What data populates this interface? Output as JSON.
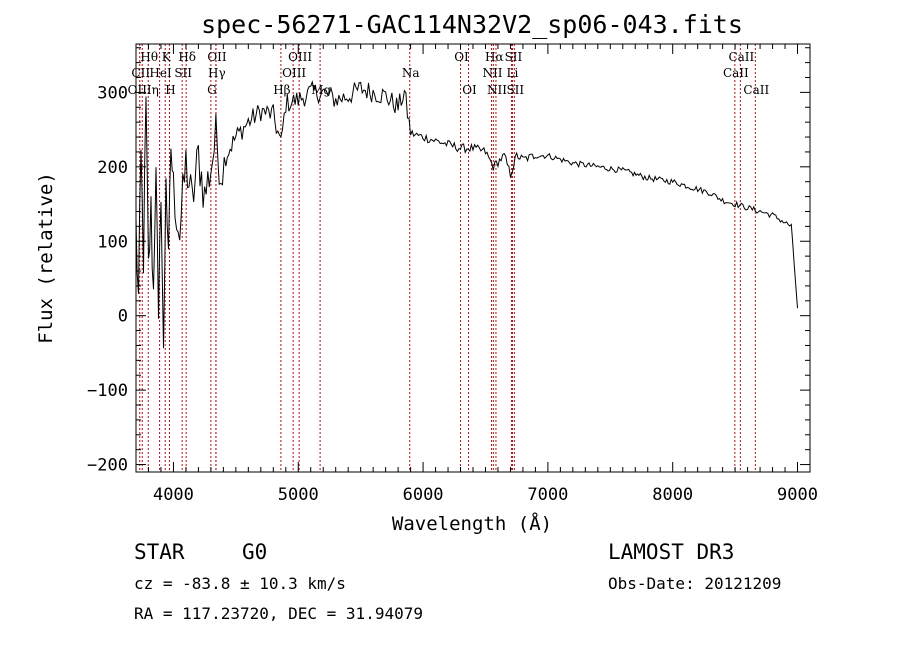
{
  "chart_data": {
    "type": "line",
    "title": "spec-56271-GAC114N32V2_sp06-043.fits",
    "xlabel": "Wavelength (Å)",
    "ylabel": "Flux (relative)",
    "xlim": [
      3700,
      9100
    ],
    "ylim": [
      -210,
      365
    ],
    "x_ticks": [
      4000,
      5000,
      6000,
      7000,
      8000,
      9000
    ],
    "y_ticks": [
      -200,
      -100,
      0,
      100,
      200,
      300
    ],
    "series": [
      {
        "name": "spectrum",
        "x": [
          3700,
          3720,
          3740,
          3760,
          3780,
          3800,
          3820,
          3840,
          3860,
          3880,
          3900,
          3920,
          3940,
          3960,
          3980,
          4000,
          4050,
          4100,
          4150,
          4200,
          4250,
          4300,
          4340,
          4380,
          4420,
          4500,
          4600,
          4700,
          4800,
          4861,
          4900,
          5000,
          5100,
          5200,
          5300,
          5400,
          5500,
          5600,
          5700,
          5800,
          5850,
          5900,
          6000,
          6100,
          6200,
          6300,
          6400,
          6500,
          6563,
          6650,
          6700,
          6750,
          6800,
          6900,
          7000,
          7100,
          7200,
          7400,
          7600,
          7800,
          8000,
          8200,
          8300,
          8400,
          8500,
          8600,
          8700,
          8800,
          8900,
          8950,
          9000
        ],
        "y": [
          120,
          20,
          210,
          80,
          280,
          60,
          140,
          30,
          220,
          -30,
          180,
          -60,
          200,
          60,
          230,
          170,
          110,
          205,
          150,
          215,
          160,
          200,
          240,
          195,
          215,
          240,
          260,
          275,
          270,
          230,
          285,
          290,
          300,
          300,
          290,
          295,
          305,
          300,
          295,
          280,
          300,
          245,
          240,
          235,
          230,
          225,
          225,
          220,
          200,
          215,
          190,
          215,
          210,
          215,
          215,
          210,
          205,
          200,
          195,
          185,
          180,
          170,
          165,
          155,
          150,
          145,
          140,
          135,
          125,
          120,
          10
        ]
      }
    ],
    "spectral_lines": [
      {
        "label": "Hθ",
        "wave": 3798,
        "row": 1
      },
      {
        "label": "K",
        "wave": 3934,
        "row": 1
      },
      {
        "label": "Hδ",
        "wave": 4102,
        "row": 1
      },
      {
        "label": "OII",
        "wave": 4341,
        "row": 1
      },
      {
        "label": "OIII",
        "wave": 5007,
        "row": 1
      },
      {
        "label": "OI",
        "wave": 6300,
        "row": 1
      },
      {
        "label": "Hα",
        "wave": 6563,
        "row": 1
      },
      {
        "label": "SII",
        "wave": 6716,
        "row": 1
      },
      {
        "label": "CaII",
        "wave": 8542,
        "row": 1
      },
      {
        "label": "CII",
        "wave": 3730,
        "row": 2
      },
      {
        "label": "HeI",
        "wave": 3889,
        "row": 2
      },
      {
        "label": "SII",
        "wave": 4070,
        "row": 2
      },
      {
        "label": "Hγ",
        "wave": 4340,
        "row": 2
      },
      {
        "label": "OIII",
        "wave": 4959,
        "row": 2
      },
      {
        "label": "Na",
        "wave": 5893,
        "row": 2
      },
      {
        "label": "NII",
        "wave": 6548,
        "row": 2
      },
      {
        "label": "Li",
        "wave": 6708,
        "row": 2
      },
      {
        "label": "CaII",
        "wave": 8498,
        "row": 2
      },
      {
        "label": "OIIIη",
        "wave": 3750,
        "row": 3
      },
      {
        "label": "H",
        "wave": 3968,
        "row": 3
      },
      {
        "label": "G",
        "wave": 4300,
        "row": 3
      },
      {
        "label": "Hβ",
        "wave": 4861,
        "row": 3
      },
      {
        "label": "Mg",
        "wave": 5175,
        "row": 3
      },
      {
        "label": "OI",
        "wave": 6364,
        "row": 3
      },
      {
        "label": "NII",
        "wave": 6584,
        "row": 3
      },
      {
        "label": "SII",
        "wave": 6731,
        "row": 3
      },
      {
        "label": "CaII",
        "wave": 8662,
        "row": 3
      }
    ]
  },
  "info": {
    "object_class": "STAR",
    "subclass": "G0",
    "survey": "LAMOST DR3",
    "cz": "cz = -83.8 ± 10.3 km/s",
    "obs_date": "Obs-Date: 20121209",
    "coords": "RA = 117.23720, DEC =  31.94079"
  }
}
